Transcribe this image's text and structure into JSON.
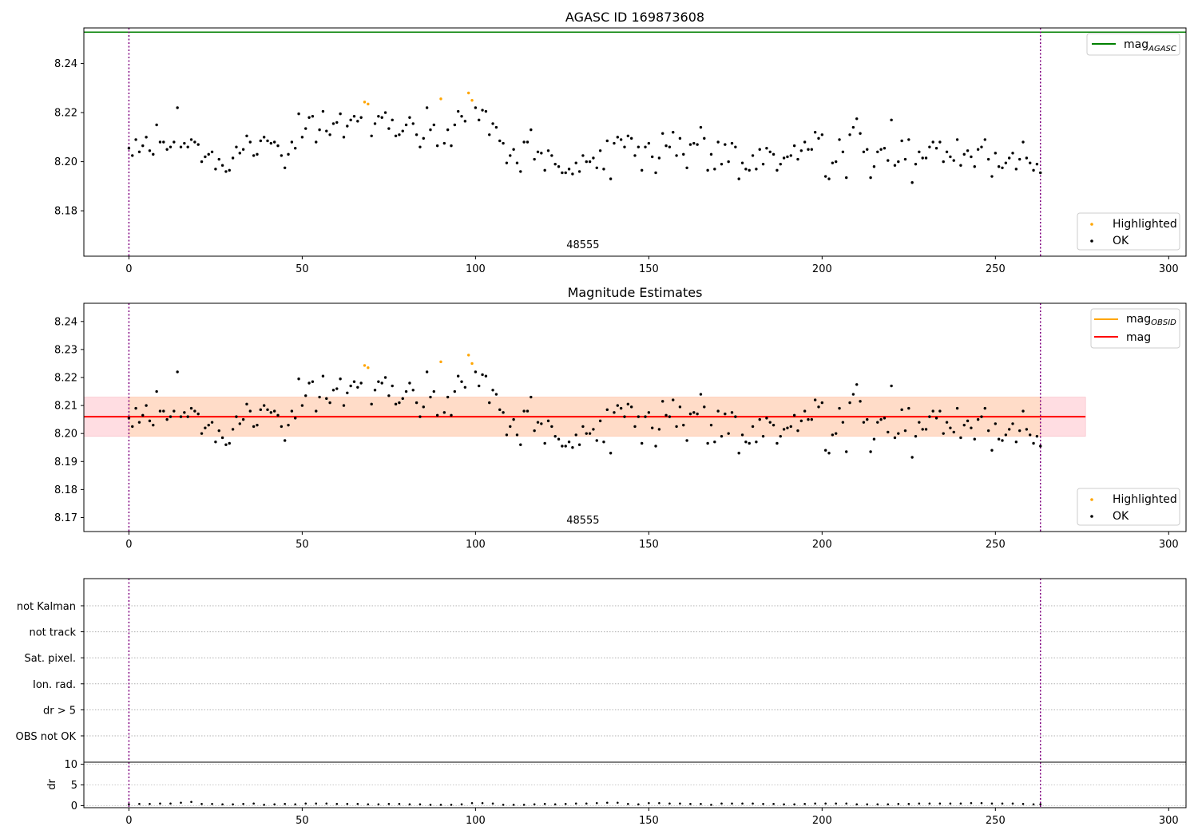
{
  "chart_data": [
    {
      "type": "scatter",
      "title": "AGASC ID 169873608",
      "xlim": [
        -13,
        305
      ],
      "ylim": [
        8.1615,
        8.2545
      ],
      "xticks": [
        0,
        50,
        100,
        150,
        200,
        250,
        300
      ],
      "yticks": [
        8.18,
        8.2,
        8.22,
        8.24
      ],
      "ytick_labels": [
        "8.18",
        "8.20",
        "8.22",
        "8.24"
      ],
      "vlines": [
        0,
        263
      ],
      "hline_value": 8.2528,
      "hline_color": "#008000",
      "annotation": "48555",
      "annotation_x": 131,
      "legend_upper": {
        "placement": "upper-right",
        "entries": [
          {
            "label": "mag",
            "sub": "AGASC",
            "color": "#008000",
            "kind": "line"
          }
        ]
      },
      "legend_lower": {
        "placement": "lower-right",
        "entries": [
          {
            "label": "Highlighted",
            "color": "#ffa500",
            "kind": "dot"
          },
          {
            "label": "OK",
            "color": "#000000",
            "kind": "dot"
          }
        ]
      },
      "highlighted_points": [
        [
          68,
          8.2243
        ],
        [
          69,
          8.2235
        ],
        [
          90,
          8.2256
        ],
        [
          98,
          8.228
        ],
        [
          99,
          8.225
        ]
      ]
    },
    {
      "type": "scatter",
      "title": "Magnitude Estimates",
      "xlim": [
        -13,
        305
      ],
      "ylim": [
        8.165,
        8.2465
      ],
      "xticks": [
        0,
        50,
        100,
        150,
        200,
        250,
        300
      ],
      "yticks": [
        8.17,
        8.18,
        8.19,
        8.2,
        8.21,
        8.22,
        8.23,
        8.24
      ],
      "ytick_labels": [
        "8.17",
        "8.18",
        "8.19",
        "8.20",
        "8.21",
        "8.22",
        "8.23",
        "8.24"
      ],
      "vlines": [
        0,
        263
      ],
      "mag_line": 8.206,
      "mag_band": [
        8.199,
        8.213
      ],
      "obsid_line": 8.206,
      "obsid_band": [
        8.199,
        8.213
      ],
      "band_x": [
        -13,
        276
      ],
      "obsid_x": [
        0,
        263
      ],
      "annotation": "48555",
      "annotation_x": 131,
      "legend_upper": {
        "placement": "upper-right",
        "entries": [
          {
            "label": "mag",
            "sub": "OBSID",
            "color": "#ffa500",
            "kind": "line"
          },
          {
            "label": "mag",
            "sub": "",
            "color": "#ff0000",
            "kind": "line"
          }
        ]
      },
      "legend_lower": {
        "placement": "lower-right",
        "entries": [
          {
            "label": "Highlighted",
            "color": "#ffa500",
            "kind": "dot"
          },
          {
            "label": "OK",
            "color": "#000000",
            "kind": "dot"
          }
        ]
      },
      "highlighted_points": [
        [
          68,
          8.2243
        ],
        [
          69,
          8.2235
        ],
        [
          90,
          8.2256
        ],
        [
          98,
          8.228
        ],
        [
          99,
          8.225
        ]
      ]
    },
    {
      "type": "scatter",
      "title": "",
      "xlim": [
        -13,
        305
      ],
      "categories": [
        "not Kalman",
        "not track",
        "Sat. pixel.",
        "Ion. rad.",
        "dr > 5",
        "OBS not OK"
      ],
      "vlines": [
        0,
        263
      ],
      "flags": []
    },
    {
      "type": "scatter",
      "title": "",
      "ylabel": "dr",
      "xlim": [
        -13,
        305
      ],
      "ylim": [
        -0.5,
        10.5
      ],
      "xticks": [
        0,
        50,
        100,
        150,
        200,
        250,
        300
      ],
      "yticks": [
        0,
        5,
        10
      ],
      "ytick_labels": [
        "0",
        "5",
        "10"
      ],
      "vlines": [
        0,
        263
      ],
      "dr_points": [
        [
          0,
          0.3
        ],
        [
          3,
          0.4
        ],
        [
          6,
          0.4
        ],
        [
          9,
          0.5
        ],
        [
          12,
          0.5
        ],
        [
          15,
          0.7
        ],
        [
          18,
          0.9
        ],
        [
          21,
          0.4
        ],
        [
          24,
          0.4
        ],
        [
          27,
          0.3
        ],
        [
          30,
          0.3
        ],
        [
          33,
          0.4
        ],
        [
          36,
          0.5
        ],
        [
          39,
          0.2
        ],
        [
          42,
          0.3
        ],
        [
          45,
          0.4
        ],
        [
          48,
          0.3
        ],
        [
          51,
          0.5
        ],
        [
          54,
          0.5
        ],
        [
          57,
          0.5
        ],
        [
          60,
          0.4
        ],
        [
          63,
          0.4
        ],
        [
          66,
          0.4
        ],
        [
          69,
          0.3
        ],
        [
          72,
          0.3
        ],
        [
          75,
          0.4
        ],
        [
          78,
          0.4
        ],
        [
          81,
          0.3
        ],
        [
          84,
          0.3
        ],
        [
          87,
          0.2
        ],
        [
          90,
          0.2
        ],
        [
          93,
          0.2
        ],
        [
          96,
          0.3
        ],
        [
          99,
          0.6
        ],
        [
          102,
          0.6
        ],
        [
          105,
          0.5
        ],
        [
          108,
          0.2
        ],
        [
          111,
          0.2
        ],
        [
          114,
          0.2
        ],
        [
          117,
          0.3
        ],
        [
          120,
          0.4
        ],
        [
          123,
          0.3
        ],
        [
          126,
          0.4
        ],
        [
          129,
          0.5
        ],
        [
          132,
          0.5
        ],
        [
          135,
          0.6
        ],
        [
          138,
          0.7
        ],
        [
          141,
          0.7
        ],
        [
          144,
          0.4
        ],
        [
          147,
          0.3
        ],
        [
          150,
          0.6
        ],
        [
          153,
          0.6
        ],
        [
          156,
          0.5
        ],
        [
          159,
          0.5
        ],
        [
          162,
          0.4
        ],
        [
          165,
          0.4
        ],
        [
          168,
          0.2
        ],
        [
          171,
          0.5
        ],
        [
          174,
          0.5
        ],
        [
          177,
          0.5
        ],
        [
          180,
          0.5
        ],
        [
          183,
          0.4
        ],
        [
          186,
          0.4
        ],
        [
          189,
          0.3
        ],
        [
          192,
          0.3
        ],
        [
          195,
          0.4
        ],
        [
          198,
          0.5
        ],
        [
          201,
          0.5
        ],
        [
          204,
          0.5
        ],
        [
          207,
          0.5
        ],
        [
          210,
          0.3
        ],
        [
          213,
          0.3
        ],
        [
          216,
          0.3
        ],
        [
          219,
          0.3
        ],
        [
          222,
          0.4
        ],
        [
          225,
          0.4
        ],
        [
          228,
          0.5
        ],
        [
          231,
          0.5
        ],
        [
          234,
          0.5
        ],
        [
          237,
          0.5
        ],
        [
          240,
          0.5
        ],
        [
          243,
          0.6
        ],
        [
          246,
          0.6
        ],
        [
          249,
          0.5
        ],
        [
          252,
          0.5
        ],
        [
          255,
          0.5
        ],
        [
          258,
          0.4
        ],
        [
          261,
          0.3
        ],
        [
          263,
          0.3
        ]
      ]
    }
  ]
}
